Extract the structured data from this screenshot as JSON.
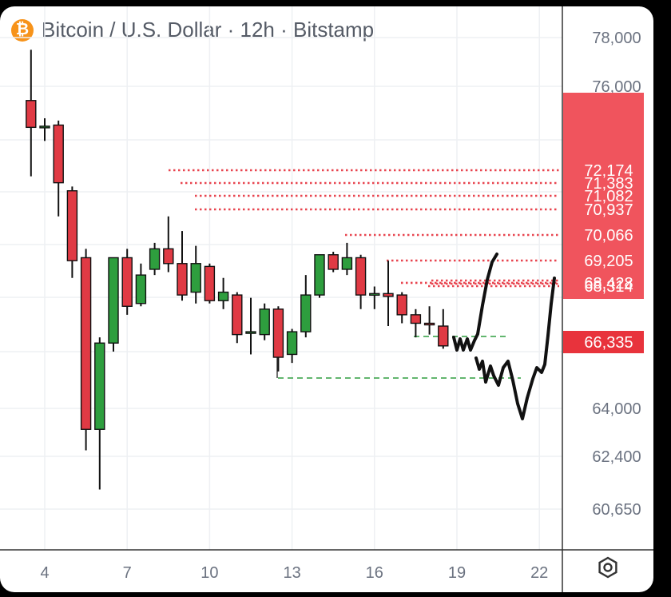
{
  "header": {
    "title": "Bitcoin / U.S. Dollar · 12h · Bitstamp",
    "coin_symbol": "₿"
  },
  "colors": {
    "up": "#2e9e3e",
    "down": "#e03a44",
    "level_line": "#e8444f",
    "support_line": "#2e9e3e",
    "label_bg": "#f0545d",
    "current_bg": "#e8333c",
    "grid": "#eef0f3",
    "axis": "#333333",
    "drawing": "#111111"
  },
  "chart_data": {
    "type": "candlestick",
    "title": "Bitcoin / U.S. Dollar · 12h · Bitstamp",
    "y_ticks": [
      {
        "value": 78000,
        "label": "78,000"
      },
      {
        "value": 76000,
        "label": "76,000"
      },
      {
        "value": 64000,
        "label": "64,000"
      },
      {
        "value": 62400,
        "label": "62,400"
      },
      {
        "value": 60650,
        "label": "60,650"
      }
    ],
    "x_ticks": [
      {
        "x": 4,
        "label": "4"
      },
      {
        "x": 7,
        "label": "7"
      },
      {
        "x": 10,
        "label": "10"
      },
      {
        "x": 13,
        "label": "13"
      },
      {
        "x": 16,
        "label": "16"
      },
      {
        "x": 19,
        "label": "19"
      },
      {
        "x": 22,
        "label": "22"
      }
    ],
    "price_levels": [
      {
        "value": 72174,
        "label": "72,174"
      },
      {
        "value": 71383,
        "label": "71,383"
      },
      {
        "value": 71082,
        "label": "71,082"
      },
      {
        "value": 70937,
        "label": "70,937"
      },
      {
        "value": 70066,
        "label": "70,066"
      },
      {
        "value": 69205,
        "label": "69,205"
      },
      {
        "value": 68428,
        "label": "68,428"
      },
      {
        "value": 68314,
        "label": "68,314"
      }
    ],
    "current_price": {
      "value": 66335,
      "label": "66,335"
    },
    "candles": [
      {
        "t": 3.5,
        "o": 75200,
        "c": 73800,
        "h": 77500,
        "l": 71800
      },
      {
        "t": 4.0,
        "o": 73800,
        "c": 73850,
        "h": 74200,
        "l": 73200
      },
      {
        "t": 4.5,
        "o": 73900,
        "c": 71400,
        "h": 74100,
        "l": 70700
      },
      {
        "t": 5.0,
        "o": 71200,
        "c": 69200,
        "h": 71300,
        "l": 68600
      },
      {
        "t": 5.5,
        "o": 69300,
        "c": 63300,
        "h": 69600,
        "l": 62600
      },
      {
        "t": 6.0,
        "o": 63300,
        "c": 66300,
        "h": 66500,
        "l": 61300
      },
      {
        "t": 6.5,
        "o": 66300,
        "c": 69300,
        "h": 69300,
        "l": 66000
      },
      {
        "t": 7.0,
        "o": 69300,
        "c": 67600,
        "h": 69600,
        "l": 67300
      },
      {
        "t": 7.5,
        "o": 67700,
        "c": 68700,
        "h": 69100,
        "l": 67600
      },
      {
        "t": 8.0,
        "o": 68900,
        "c": 69600,
        "h": 69800,
        "l": 68700
      },
      {
        "t": 8.5,
        "o": 69600,
        "c": 69100,
        "h": 70700,
        "l": 68800
      },
      {
        "t": 9.0,
        "o": 69100,
        "c": 68000,
        "h": 70200,
        "l": 67800
      },
      {
        "t": 9.5,
        "o": 68100,
        "c": 69100,
        "h": 69700,
        "l": 67700
      },
      {
        "t": 10.0,
        "o": 69000,
        "c": 67800,
        "h": 69100,
        "l": 67700
      },
      {
        "t": 10.5,
        "o": 67800,
        "c": 68100,
        "h": 68600,
        "l": 67500
      },
      {
        "t": 11.0,
        "o": 68000,
        "c": 66600,
        "h": 68100,
        "l": 66300
      },
      {
        "t": 11.5,
        "o": 66700,
        "c": 66700,
        "h": 67900,
        "l": 65900
      },
      {
        "t": 12.0,
        "o": 66600,
        "c": 67500,
        "h": 67700,
        "l": 66400
      },
      {
        "t": 12.5,
        "o": 67500,
        "c": 65800,
        "h": 67600,
        "l": 65300
      },
      {
        "t": 13.0,
        "o": 65900,
        "c": 66700,
        "h": 66800,
        "l": 65600
      },
      {
        "t": 13.5,
        "o": 66700,
        "c": 68000,
        "h": 68700,
        "l": 66500
      },
      {
        "t": 14.0,
        "o": 68000,
        "c": 69400,
        "h": 69400,
        "l": 67900
      },
      {
        "t": 14.5,
        "o": 69400,
        "c": 68900,
        "h": 69500,
        "l": 68800
      },
      {
        "t": 15.0,
        "o": 68900,
        "c": 69300,
        "h": 69800,
        "l": 68700
      },
      {
        "t": 15.5,
        "o": 69300,
        "c": 68000,
        "h": 69400,
        "l": 67500
      },
      {
        "t": 16.0,
        "o": 68000,
        "c": 68050,
        "h": 68300,
        "l": 67500
      },
      {
        "t": 16.5,
        "o": 68050,
        "c": 67950,
        "h": 69200,
        "l": 66900
      },
      {
        "t": 17.0,
        "o": 68000,
        "c": 67300,
        "h": 68100,
        "l": 67000
      },
      {
        "t": 17.5,
        "o": 67300,
        "c": 67000,
        "h": 67500,
        "l": 66500
      },
      {
        "t": 18.0,
        "o": 67000,
        "c": 66950,
        "h": 67600,
        "l": 66600
      },
      {
        "t": 18.5,
        "o": 66900,
        "c": 66200,
        "h": 67500,
        "l": 66100
      }
    ]
  }
}
